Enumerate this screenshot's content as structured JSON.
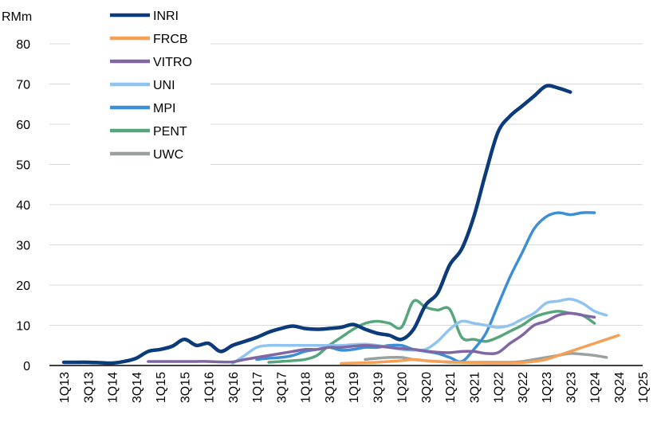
{
  "chart_data": {
    "type": "line",
    "title": "",
    "xlabel": "",
    "ylabel": "RMm",
    "ylim": [
      0,
      80
    ],
    "yticks": [
      0,
      10,
      20,
      30,
      40,
      50,
      60,
      70,
      80
    ],
    "grid": true,
    "legend_position": "top-left",
    "x": [
      "1Q13",
      "2Q13",
      "3Q13",
      "4Q13",
      "1Q14",
      "2Q14",
      "3Q14",
      "4Q14",
      "1Q15",
      "2Q15",
      "3Q15",
      "4Q15",
      "1Q16",
      "2Q16",
      "3Q16",
      "4Q16",
      "1Q17",
      "2Q17",
      "3Q17",
      "4Q17",
      "1Q18",
      "2Q18",
      "3Q18",
      "4Q18",
      "1Q19",
      "2Q19",
      "3Q19",
      "4Q19",
      "1Q20",
      "2Q20",
      "3Q20",
      "4Q20",
      "1Q21",
      "2Q21",
      "3Q21",
      "4Q21",
      "1Q22",
      "2Q22",
      "3Q22",
      "4Q22",
      "1Q23",
      "2Q23",
      "3Q23",
      "4Q23",
      "1Q24",
      "2Q24",
      "3Q24",
      "4Q24",
      "1Q25"
    ],
    "x_tick_labels": [
      "1Q13",
      "3Q13",
      "1Q14",
      "3Q14",
      "1Q15",
      "3Q15",
      "1Q16",
      "3Q16",
      "1Q17",
      "3Q17",
      "1Q18",
      "3Q18",
      "1Q19",
      "3Q19",
      "1Q20",
      "3Q20",
      "1Q21",
      "3Q21",
      "1Q22",
      "3Q22",
      "1Q23",
      "3Q23",
      "1Q24",
      "3Q24",
      "1Q25"
    ],
    "series": [
      {
        "name": "INRI",
        "color": "#0b3b7a",
        "values": [
          0.8,
          0.8,
          0.8,
          0.7,
          0.6,
          1.0,
          1.8,
          3.5,
          4.0,
          4.8,
          6.5,
          5.0,
          5.5,
          3.5,
          5.0,
          6.0,
          7.0,
          8.3,
          9.2,
          9.8,
          9.2,
          9.0,
          9.2,
          9.5,
          10.2,
          9.0,
          8.0,
          7.5,
          6.5,
          9.0,
          15.0,
          18.0,
          25.0,
          29.0,
          37.0,
          48.0,
          58.0,
          62.0,
          64.5,
          67.0,
          69.5,
          69.0,
          68.0,
          null,
          null,
          null,
          null,
          null,
          null
        ]
      },
      {
        "name": "FRCB",
        "color": "#f7a055",
        "values": [
          null,
          null,
          null,
          null,
          null,
          null,
          null,
          null,
          null,
          null,
          null,
          null,
          null,
          null,
          null,
          null,
          null,
          null,
          null,
          null,
          null,
          null,
          null,
          0.5,
          0.6,
          0.7,
          0.8,
          1.0,
          1.2,
          1.5,
          1.2,
          1.0,
          0.9,
          0.8,
          0.7,
          0.6,
          0.6,
          0.6,
          0.7,
          1.0,
          1.5,
          2.5,
          3.5,
          4.5,
          5.5,
          6.5,
          7.5,
          null,
          null
        ]
      },
      {
        "name": "VITRO",
        "color": "#8067a3",
        "values": [
          null,
          null,
          null,
          null,
          null,
          null,
          null,
          1.0,
          1.0,
          1.0,
          1.0,
          1.0,
          1.0,
          0.9,
          0.9,
          1.5,
          2.0,
          2.5,
          3.0,
          3.5,
          4.0,
          4.0,
          4.5,
          4.5,
          4.8,
          5.0,
          4.8,
          4.5,
          4.2,
          4.0,
          3.6,
          3.3,
          3.2,
          3.5,
          3.5,
          3.0,
          3.2,
          5.5,
          7.5,
          10.0,
          11.0,
          12.5,
          13.0,
          12.5,
          12.0,
          null,
          null,
          null,
          null
        ]
      },
      {
        "name": "UNI",
        "color": "#8ec4ef",
        "values": [
          null,
          null,
          null,
          null,
          null,
          null,
          null,
          null,
          null,
          null,
          null,
          null,
          null,
          null,
          0.5,
          2.5,
          4.5,
          5.0,
          5.0,
          5.0,
          5.0,
          5.0,
          5.0,
          5.0,
          5.2,
          5.3,
          5.0,
          4.5,
          4.0,
          3.8,
          4.0,
          6.0,
          9.0,
          11.0,
          10.5,
          10.0,
          9.5,
          10.0,
          11.5,
          13.0,
          15.5,
          16.0,
          16.5,
          15.5,
          13.5,
          12.5,
          null,
          null,
          null
        ]
      },
      {
        "name": "MPI",
        "color": "#3c8ed6",
        "values": [
          null,
          null,
          null,
          null,
          null,
          null,
          null,
          null,
          null,
          null,
          null,
          null,
          null,
          null,
          null,
          null,
          1.5,
          1.8,
          2.0,
          2.5,
          3.5,
          4.0,
          4.5,
          3.8,
          4.0,
          4.5,
          4.5,
          5.0,
          5.0,
          4.0,
          3.5,
          3.0,
          2.0,
          1.0,
          4.0,
          8.0,
          15.0,
          22.0,
          28.0,
          34.0,
          37.0,
          38.0,
          37.5,
          38.0,
          38.0,
          null,
          null,
          null,
          null
        ]
      },
      {
        "name": "PENT",
        "color": "#57a57c",
        "values": [
          null,
          null,
          null,
          null,
          null,
          null,
          null,
          null,
          null,
          null,
          null,
          null,
          null,
          null,
          null,
          null,
          null,
          0.8,
          1.0,
          1.2,
          1.5,
          2.5,
          5.0,
          7.0,
          9.0,
          10.5,
          11.0,
          10.5,
          9.5,
          16.0,
          14.5,
          13.8,
          14.0,
          7.0,
          6.5,
          6.0,
          7.0,
          8.5,
          10.0,
          12.0,
          13.0,
          13.5,
          13.0,
          12.5,
          10.5,
          null,
          null,
          null,
          null
        ]
      },
      {
        "name": "UWC",
        "color": "#9aa19d",
        "values": [
          null,
          null,
          null,
          null,
          null,
          null,
          null,
          null,
          null,
          null,
          null,
          null,
          null,
          null,
          null,
          null,
          null,
          null,
          null,
          null,
          null,
          null,
          null,
          null,
          null,
          1.5,
          1.8,
          2.0,
          2.0,
          1.5,
          1.2,
          1.0,
          0.8,
          0.8,
          0.8,
          0.8,
          0.8,
          0.8,
          1.0,
          1.5,
          2.0,
          2.5,
          3.0,
          2.8,
          2.5,
          2.0,
          null,
          null,
          null
        ]
      }
    ]
  }
}
